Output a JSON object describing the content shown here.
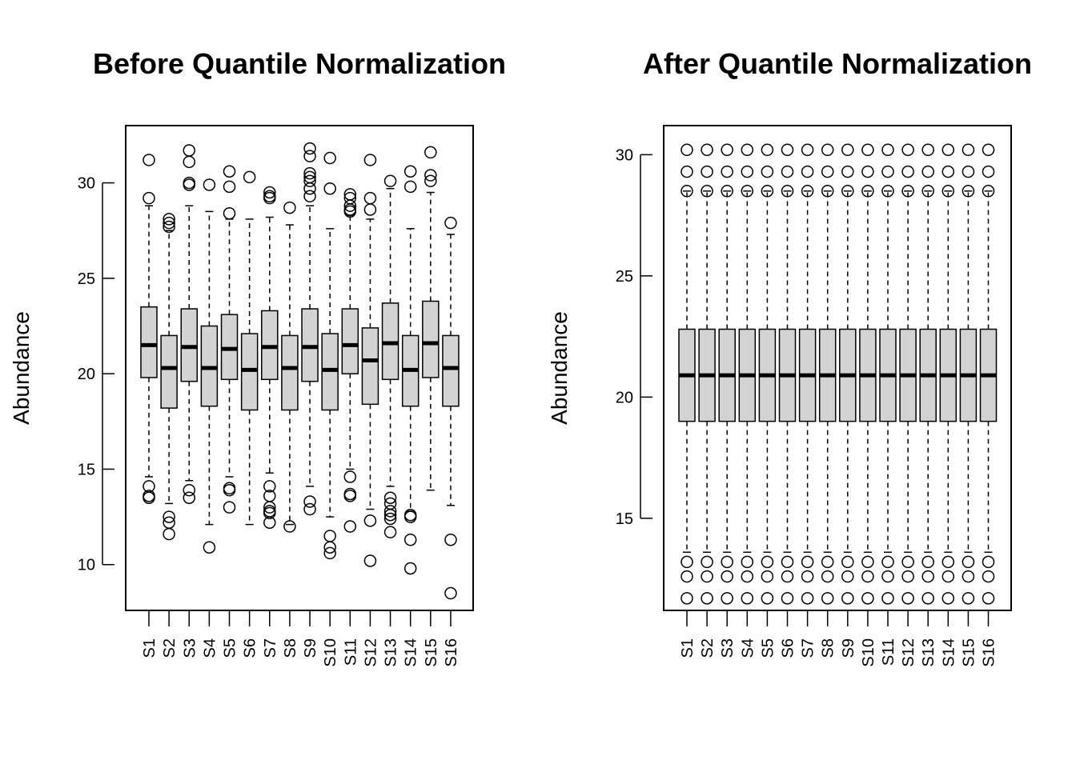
{
  "chart_data": [
    {
      "type": "boxplot",
      "title": "Before Quantile Normalization",
      "ylabel": "Abundance",
      "ylim": [
        7.6,
        33.0
      ],
      "yticks": [
        10,
        15,
        20,
        25,
        30
      ],
      "categories": [
        "S1",
        "S2",
        "S3",
        "S4",
        "S5",
        "S6",
        "S7",
        "S8",
        "S9",
        "S10",
        "S11",
        "S12",
        "S13",
        "S14",
        "S15",
        "S16"
      ],
      "box_color": "#d3d3d3",
      "boxes": [
        {
          "label": "S1",
          "whisker_low": 14.6,
          "q1": 19.8,
          "median": 21.5,
          "q3": 23.5,
          "whisker_high": 28.8,
          "outliers": [
            31.2,
            29.2,
            14.1,
            13.6,
            13.5
          ]
        },
        {
          "label": "S2",
          "whisker_low": 13.2,
          "q1": 18.2,
          "median": 20.3,
          "q3": 22.0,
          "whisker_high": 27.5,
          "outliers": [
            28.1,
            27.9,
            27.7,
            12.5,
            12.2,
            11.6
          ]
        },
        {
          "label": "S3",
          "whisker_low": 14.4,
          "q1": 19.6,
          "median": 21.4,
          "q3": 23.4,
          "whisker_high": 28.8,
          "outliers": [
            31.7,
            31.1,
            30.0,
            29.9,
            13.9,
            13.5
          ]
        },
        {
          "label": "S4",
          "whisker_low": 12.1,
          "q1": 18.3,
          "median": 20.3,
          "q3": 22.5,
          "whisker_high": 28.5,
          "outliers": [
            29.9,
            10.9
          ]
        },
        {
          "label": "S5",
          "whisker_low": 14.6,
          "q1": 19.7,
          "median": 21.3,
          "q3": 23.1,
          "whisker_high": 28.1,
          "outliers": [
            30.6,
            29.8,
            28.4,
            14.0,
            13.9,
            13.0
          ]
        },
        {
          "label": "S6",
          "whisker_low": 12.1,
          "q1": 18.1,
          "median": 20.2,
          "q3": 22.1,
          "whisker_high": 28.1,
          "outliers": [
            30.3
          ]
        },
        {
          "label": "S7",
          "whisker_low": 14.8,
          "q1": 19.7,
          "median": 21.4,
          "q3": 23.3,
          "whisker_high": 28.2,
          "outliers": [
            29.5,
            29.3,
            29.2,
            14.1,
            13.6,
            13.0,
            12.8,
            12.7,
            12.2
          ]
        },
        {
          "label": "S8",
          "whisker_low": 12.1,
          "q1": 18.1,
          "median": 20.3,
          "q3": 22.0,
          "whisker_high": 27.8,
          "outliers": [
            28.7,
            12.0
          ]
        },
        {
          "label": "S9",
          "whisker_low": 14.1,
          "q1": 19.6,
          "median": 21.4,
          "q3": 23.4,
          "whisker_high": 28.8,
          "outliers": [
            31.8,
            31.4,
            30.5,
            30.3,
            30.1,
            29.7,
            29.3,
            13.3,
            12.9
          ]
        },
        {
          "label": "S10",
          "whisker_low": 12.5,
          "q1": 18.1,
          "median": 20.2,
          "q3": 22.1,
          "whisker_high": 27.6,
          "outliers": [
            31.3,
            29.7,
            11.5,
            10.9,
            10.6
          ]
        },
        {
          "label": "S11",
          "whisker_low": 15.0,
          "q1": 20.0,
          "median": 21.5,
          "q3": 23.4,
          "whisker_high": 28.3,
          "outliers": [
            29.4,
            29.2,
            28.8,
            28.6,
            28.5,
            14.6,
            13.7,
            13.6,
            12.0
          ]
        },
        {
          "label": "S12",
          "whisker_low": 12.9,
          "q1": 18.4,
          "median": 20.7,
          "q3": 22.4,
          "whisker_high": 28.1,
          "outliers": [
            31.2,
            29.2,
            28.6,
            12.3,
            10.2
          ]
        },
        {
          "label": "S13",
          "whisker_low": 14.1,
          "q1": 19.7,
          "median": 21.6,
          "q3": 23.7,
          "whisker_high": 29.7,
          "outliers": [
            30.1,
            13.5,
            13.2,
            12.8,
            12.6,
            12.4,
            11.7
          ]
        },
        {
          "label": "S14",
          "whisker_low": 12.8,
          "q1": 18.3,
          "median": 20.2,
          "q3": 22.0,
          "whisker_high": 27.6,
          "outliers": [
            30.6,
            29.8,
            12.6,
            12.5,
            11.3,
            9.8
          ]
        },
        {
          "label": "S15",
          "whisker_low": 13.9,
          "q1": 19.8,
          "median": 21.6,
          "q3": 23.8,
          "whisker_high": 29.5,
          "outliers": [
            31.6,
            30.4,
            30.1
          ]
        },
        {
          "label": "S16",
          "whisker_low": 13.1,
          "q1": 18.3,
          "median": 20.3,
          "q3": 22.0,
          "whisker_high": 27.3,
          "outliers": [
            27.9,
            11.3,
            8.5
          ]
        }
      ]
    },
    {
      "type": "boxplot",
      "title": "After Quantile Normalization",
      "ylabel": "Abundance",
      "ylim": [
        11.2,
        31.2
      ],
      "yticks": [
        15,
        20,
        25,
        30
      ],
      "categories": [
        "S1",
        "S2",
        "S3",
        "S4",
        "S5",
        "S6",
        "S7",
        "S8",
        "S9",
        "S10",
        "S11",
        "S12",
        "S13",
        "S14",
        "S15",
        "S16"
      ],
      "box_color": "#d3d3d3",
      "boxes": [
        {
          "label": "S1",
          "whisker_low": 13.6,
          "q1": 19.0,
          "median": 20.9,
          "q3": 22.8,
          "whisker_high": 28.5,
          "outliers": [
            30.2,
            29.3,
            28.5,
            13.2,
            12.6,
            11.7
          ]
        },
        {
          "label": "S2",
          "whisker_low": 13.6,
          "q1": 19.0,
          "median": 20.9,
          "q3": 22.8,
          "whisker_high": 28.5,
          "outliers": [
            30.2,
            29.3,
            28.5,
            13.2,
            12.6,
            11.7
          ]
        },
        {
          "label": "S3",
          "whisker_low": 13.6,
          "q1": 19.0,
          "median": 20.9,
          "q3": 22.8,
          "whisker_high": 28.5,
          "outliers": [
            30.2,
            29.3,
            28.5,
            13.2,
            12.6,
            11.7
          ]
        },
        {
          "label": "S4",
          "whisker_low": 13.6,
          "q1": 19.0,
          "median": 20.9,
          "q3": 22.8,
          "whisker_high": 28.5,
          "outliers": [
            30.2,
            29.3,
            28.5,
            13.2,
            12.6,
            11.7
          ]
        },
        {
          "label": "S5",
          "whisker_low": 13.6,
          "q1": 19.0,
          "median": 20.9,
          "q3": 22.8,
          "whisker_high": 28.5,
          "outliers": [
            30.2,
            29.3,
            28.5,
            13.2,
            12.6,
            11.7
          ]
        },
        {
          "label": "S6",
          "whisker_low": 13.6,
          "q1": 19.0,
          "median": 20.9,
          "q3": 22.8,
          "whisker_high": 28.5,
          "outliers": [
            30.2,
            29.3,
            28.5,
            13.2,
            12.6,
            11.7
          ]
        },
        {
          "label": "S7",
          "whisker_low": 13.6,
          "q1": 19.0,
          "median": 20.9,
          "q3": 22.8,
          "whisker_high": 28.5,
          "outliers": [
            30.2,
            29.3,
            28.5,
            13.2,
            12.6,
            11.7
          ]
        },
        {
          "label": "S8",
          "whisker_low": 13.6,
          "q1": 19.0,
          "median": 20.9,
          "q3": 22.8,
          "whisker_high": 28.5,
          "outliers": [
            30.2,
            29.3,
            28.5,
            13.2,
            12.6,
            11.7
          ]
        },
        {
          "label": "S9",
          "whisker_low": 13.6,
          "q1": 19.0,
          "median": 20.9,
          "q3": 22.8,
          "whisker_high": 28.5,
          "outliers": [
            30.2,
            29.3,
            28.5,
            13.2,
            12.6,
            11.7
          ]
        },
        {
          "label": "S10",
          "whisker_low": 13.6,
          "q1": 19.0,
          "median": 20.9,
          "q3": 22.8,
          "whisker_high": 28.5,
          "outliers": [
            30.2,
            29.3,
            28.5,
            13.2,
            12.6,
            11.7
          ]
        },
        {
          "label": "S11",
          "whisker_low": 13.6,
          "q1": 19.0,
          "median": 20.9,
          "q3": 22.8,
          "whisker_high": 28.5,
          "outliers": [
            30.2,
            29.3,
            28.5,
            13.2,
            12.6,
            11.7
          ]
        },
        {
          "label": "S12",
          "whisker_low": 13.6,
          "q1": 19.0,
          "median": 20.9,
          "q3": 22.8,
          "whisker_high": 28.5,
          "outliers": [
            30.2,
            29.3,
            28.5,
            13.2,
            12.6,
            11.7
          ]
        },
        {
          "label": "S13",
          "whisker_low": 13.6,
          "q1": 19.0,
          "median": 20.9,
          "q3": 22.8,
          "whisker_high": 28.5,
          "outliers": [
            30.2,
            29.3,
            28.5,
            13.2,
            12.6,
            11.7
          ]
        },
        {
          "label": "S14",
          "whisker_low": 13.6,
          "q1": 19.0,
          "median": 20.9,
          "q3": 22.8,
          "whisker_high": 28.5,
          "outliers": [
            30.2,
            29.3,
            28.5,
            13.2,
            12.6,
            11.7
          ]
        },
        {
          "label": "S15",
          "whisker_low": 13.6,
          "q1": 19.0,
          "median": 20.9,
          "q3": 22.8,
          "whisker_high": 28.5,
          "outliers": [
            30.2,
            29.3,
            28.5,
            13.2,
            12.6,
            11.7
          ]
        },
        {
          "label": "S16",
          "whisker_low": 13.6,
          "q1": 19.0,
          "median": 20.9,
          "q3": 22.8,
          "whisker_high": 28.5,
          "outliers": [
            30.2,
            29.3,
            28.5,
            13.2,
            12.6,
            11.7
          ]
        }
      ]
    }
  ]
}
